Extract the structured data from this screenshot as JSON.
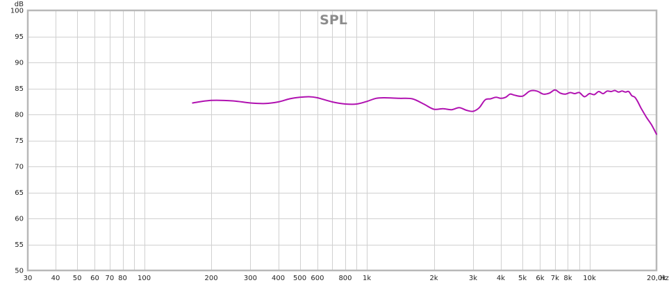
{
  "chart_data": {
    "type": "line",
    "title": "SPL",
    "ylabel": "dB",
    "xunit": "Hz",
    "xscale": "log",
    "xlim": [
      30,
      20000
    ],
    "ylim": [
      50,
      100
    ],
    "grid": true,
    "y_ticks": [
      {
        "value": 50,
        "label": "50"
      },
      {
        "value": 55,
        "label": "55"
      },
      {
        "value": 60,
        "label": "60"
      },
      {
        "value": 65,
        "label": "65"
      },
      {
        "value": 70,
        "label": "70"
      },
      {
        "value": 75,
        "label": "75"
      },
      {
        "value": 80,
        "label": "80"
      },
      {
        "value": 85,
        "label": "85"
      },
      {
        "value": 90,
        "label": "90"
      },
      {
        "value": 95,
        "label": "95"
      },
      {
        "value": 100,
        "label": "100"
      }
    ],
    "x_ticks": [
      {
        "value": 30,
        "label": "30"
      },
      {
        "value": 40,
        "label": "40"
      },
      {
        "value": 50,
        "label": "50"
      },
      {
        "value": 60,
        "label": "60"
      },
      {
        "value": 70,
        "label": "70"
      },
      {
        "value": 80,
        "label": "80"
      },
      {
        "value": 100,
        "label": "100"
      },
      {
        "value": 200,
        "label": "200"
      },
      {
        "value": 300,
        "label": "300"
      },
      {
        "value": 400,
        "label": "400"
      },
      {
        "value": 500,
        "label": "500"
      },
      {
        "value": 600,
        "label": "600"
      },
      {
        "value": 800,
        "label": "800"
      },
      {
        "value": 1000,
        "label": "1k"
      },
      {
        "value": 2000,
        "label": "2k"
      },
      {
        "value": 3000,
        "label": "3k"
      },
      {
        "value": 4000,
        "label": "4k"
      },
      {
        "value": 5000,
        "label": "5k"
      },
      {
        "value": 6000,
        "label": "6k"
      },
      {
        "value": 7000,
        "label": "7k"
      },
      {
        "value": 8000,
        "label": "8k"
      },
      {
        "value": 10000,
        "label": "10k"
      },
      {
        "value": 20000,
        "label": "20,0k"
      }
    ],
    "x_gridlines": [
      30,
      40,
      50,
      60,
      70,
      80,
      90,
      100,
      200,
      300,
      400,
      500,
      600,
      700,
      800,
      900,
      1000,
      2000,
      3000,
      4000,
      5000,
      6000,
      7000,
      8000,
      9000,
      10000,
      20000
    ],
    "series": [
      {
        "color": "#b010b0",
        "x": [
          165,
          200,
          250,
          300,
          350,
          400,
          450,
          500,
          550,
          600,
          700,
          800,
          900,
          1000,
          1100,
          1200,
          1400,
          1600,
          1800,
          2000,
          2200,
          2400,
          2600,
          2800,
          3000,
          3200,
          3400,
          3600,
          3800,
          4000,
          4200,
          4400,
          4600,
          5000,
          5400,
          5800,
          6200,
          6600,
          7000,
          7400,
          7800,
          8200,
          8600,
          9000,
          9500,
          10000,
          10500,
          11000,
          11500,
          12000,
          12500,
          13000,
          13500,
          14000,
          14500,
          15000,
          15500,
          16000,
          16500,
          17000,
          18000,
          19000,
          20000
        ],
        "y": [
          82.2,
          82.7,
          82.6,
          82.2,
          82.1,
          82.4,
          83.0,
          83.3,
          83.4,
          83.2,
          82.4,
          82.0,
          82.0,
          82.5,
          83.1,
          83.2,
          83.1,
          83.0,
          82.0,
          81.0,
          81.1,
          80.9,
          81.3,
          80.8,
          80.6,
          81.3,
          82.8,
          83.0,
          83.3,
          83.1,
          83.3,
          83.9,
          83.7,
          83.5,
          84.5,
          84.5,
          83.9,
          84.1,
          84.7,
          84.1,
          83.9,
          84.2,
          84.0,
          84.2,
          83.4,
          84.0,
          83.8,
          84.4,
          84.0,
          84.5,
          84.4,
          84.6,
          84.3,
          84.5,
          84.3,
          84.4,
          83.6,
          83.3,
          82.4,
          81.3,
          79.5,
          78.0,
          76.2
        ]
      }
    ]
  }
}
